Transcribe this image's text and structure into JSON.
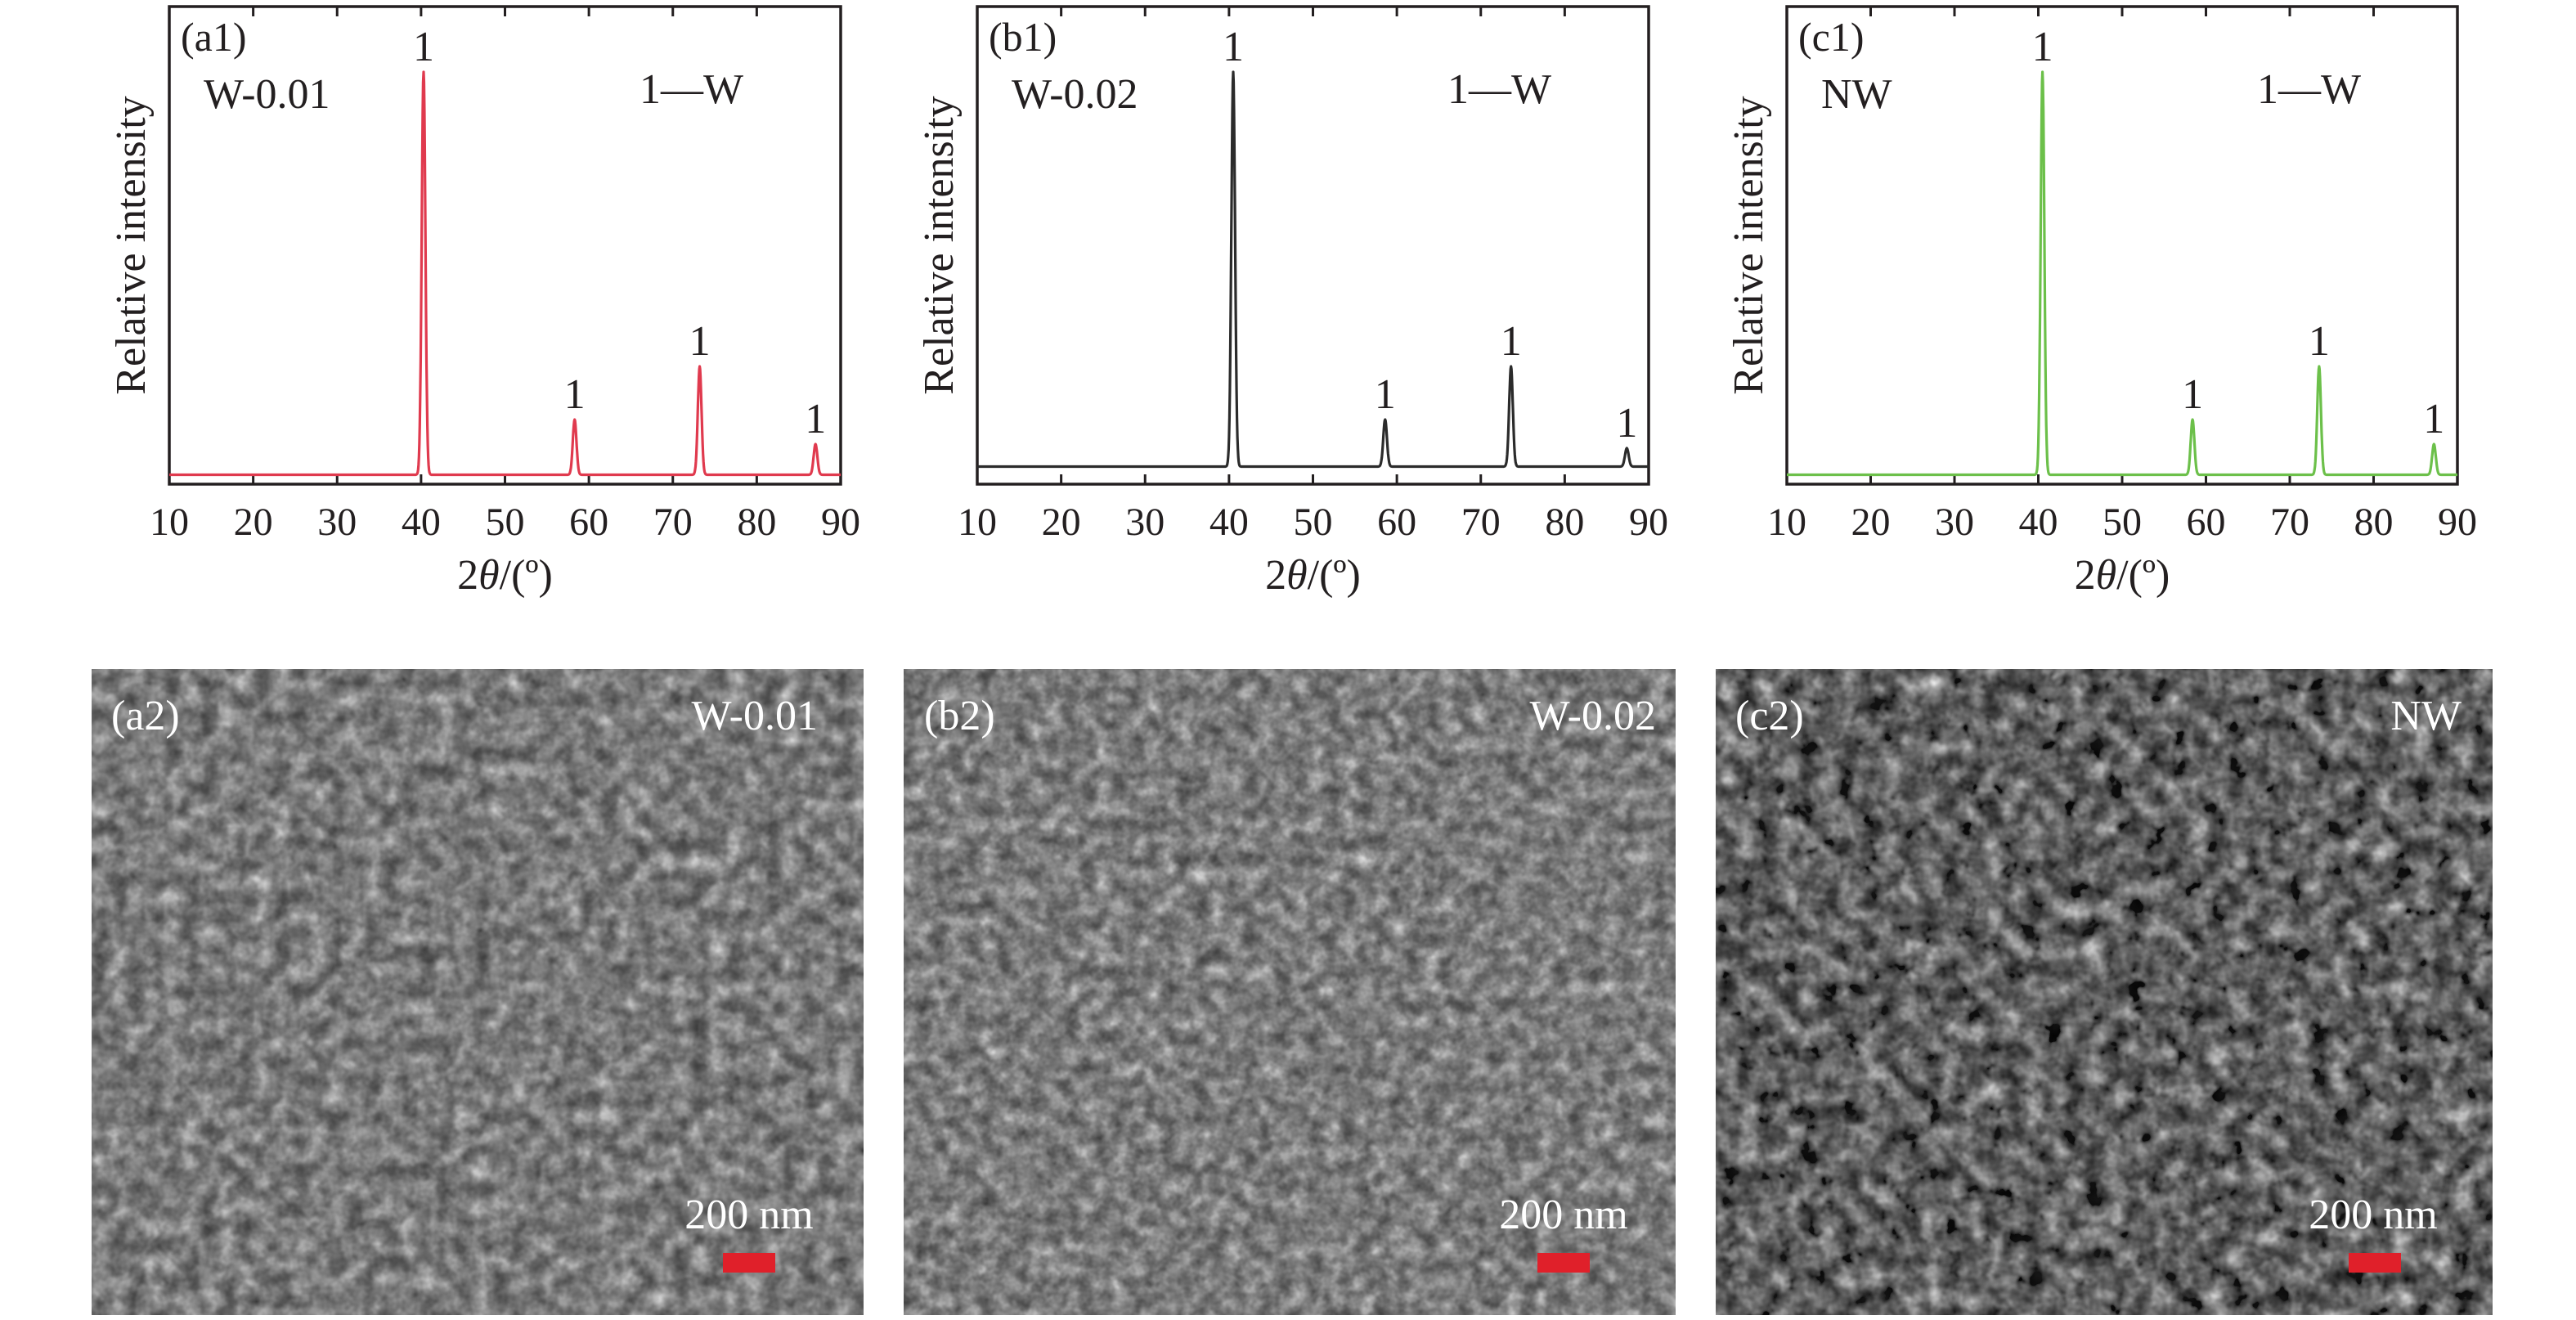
{
  "chart_data": [
    {
      "type": "line",
      "panel_label": "(a1)",
      "sample_label": "W-0.01",
      "legend_text": "1—W",
      "xlabel_prefix": "2",
      "xlabel_theta": "θ",
      "xlabel_suffix": "/(º)",
      "ylabel": "Relative intensity",
      "xlim": [
        10,
        90
      ],
      "xticks": [
        10,
        20,
        30,
        40,
        50,
        60,
        70,
        80,
        90
      ],
      "ylim": [
        0,
        100
      ],
      "color": "#e03a4e",
      "baseline": 1.5,
      "peaks": [
        {
          "x": 40.3,
          "y": 100,
          "label": "1"
        },
        {
          "x": 58.3,
          "y": 15,
          "label": "1"
        },
        {
          "x": 73.2,
          "y": 28,
          "label": "1"
        },
        {
          "x": 87.0,
          "y": 9,
          "label": "1"
        }
      ]
    },
    {
      "type": "line",
      "panel_label": "(b1)",
      "sample_label": "W-0.02",
      "legend_text": "1—W",
      "xlabel_prefix": "2",
      "xlabel_theta": "θ",
      "xlabel_suffix": "/(º)",
      "ylabel": "Relative intensity",
      "xlim": [
        10,
        90
      ],
      "xticks": [
        10,
        20,
        30,
        40,
        50,
        60,
        70,
        80,
        90
      ],
      "ylim": [
        0,
        100
      ],
      "color": "#2b2b2b",
      "baseline": 3.5,
      "peaks": [
        {
          "x": 40.5,
          "y": 100,
          "label": "1"
        },
        {
          "x": 58.6,
          "y": 15,
          "label": "1"
        },
        {
          "x": 73.6,
          "y": 28,
          "label": "1"
        },
        {
          "x": 87.4,
          "y": 8,
          "label": "1"
        }
      ]
    },
    {
      "type": "line",
      "panel_label": "(c1)",
      "sample_label": "NW",
      "legend_text": "1—W",
      "xlabel_prefix": "2",
      "xlabel_theta": "θ",
      "xlabel_suffix": "/(º)",
      "ylabel": "Relative intensity",
      "xlim": [
        10,
        90
      ],
      "xticks": [
        10,
        20,
        30,
        40,
        50,
        60,
        70,
        80,
        90
      ],
      "ylim": [
        0,
        100
      ],
      "color": "#6cc04a",
      "baseline": 1.5,
      "peaks": [
        {
          "x": 40.5,
          "y": 100,
          "label": "1"
        },
        {
          "x": 58.4,
          "y": 15,
          "label": "1"
        },
        {
          "x": 73.5,
          "y": 28,
          "label": "1"
        },
        {
          "x": 87.2,
          "y": 9,
          "label": "1"
        }
      ]
    }
  ],
  "sem_images": [
    {
      "panel_label": "(a2)",
      "sample_label": "W-0.01",
      "scale_bar_text": "200 nm",
      "scale_bar_color": "#e0202a"
    },
    {
      "panel_label": "(b2)",
      "sample_label": "W-0.02",
      "scale_bar_text": "200 nm",
      "scale_bar_color": "#e0202a"
    },
    {
      "panel_label": "(c2)",
      "sample_label": "NW",
      "scale_bar_text": "200 nm",
      "scale_bar_color": "#e0202a"
    }
  ]
}
